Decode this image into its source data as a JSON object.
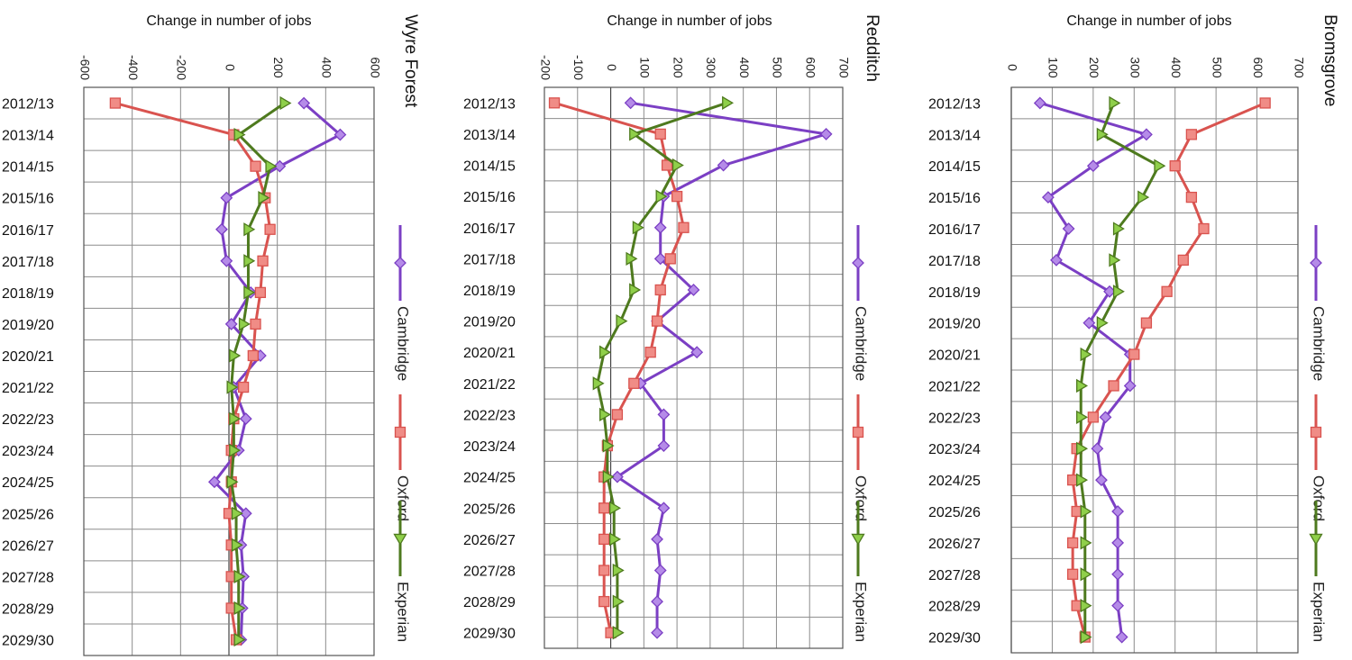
{
  "axis_title": "Change in number of jobs",
  "legend": {
    "cambridge": "Cambridge",
    "oxford": "Oxford",
    "experian": "Experian"
  },
  "colors": {
    "cambridge": "#7b3fc4",
    "cambridge_marker": "#b58be8",
    "oxford": "#d9534f",
    "oxford_marker": "#f08c86",
    "experian": "#4e7a1e",
    "experian_marker": "#8fcf4a"
  },
  "chart_data": [
    {
      "type": "line",
      "orientation": "rotated-90-clockwise",
      "title": "Wyre Forest",
      "xlabel": "",
      "ylabel": "Change in number of jobs",
      "ylim": [
        -600,
        600
      ],
      "yticks": [
        -600,
        -400,
        -200,
        0,
        200,
        400,
        600
      ],
      "categories": [
        "2012/13",
        "2013/14",
        "2014/15",
        "2015/16",
        "2016/17",
        "2017/18",
        "2018/19",
        "2019/20",
        "2020/21",
        "2021/22",
        "2022/23",
        "2023/24",
        "2024/25",
        "2025/26",
        "2026/27",
        "2027/28",
        "2028/29",
        "2029/30"
      ],
      "series": [
        {
          "name": "Cambridge",
          "values": [
            310,
            460,
            210,
            -10,
            -30,
            -10,
            90,
            10,
            130,
            20,
            70,
            40,
            -60,
            70,
            50,
            60,
            55,
            50
          ]
        },
        {
          "name": "Oxford",
          "values": [
            -470,
            20,
            110,
            150,
            170,
            140,
            130,
            110,
            100,
            60,
            20,
            10,
            10,
            0,
            10,
            10,
            10,
            30
          ]
        },
        {
          "name": "Experian",
          "values": [
            230,
            40,
            170,
            140,
            80,
            80,
            80,
            60,
            20,
            10,
            20,
            20,
            10,
            30,
            30,
            40,
            40,
            40
          ]
        }
      ],
      "grid": true,
      "legend": "right"
    },
    {
      "type": "line",
      "orientation": "rotated-90-clockwise",
      "title": "Redditch",
      "xlabel": "",
      "ylabel": "Change in number of jobs",
      "ylim": [
        -200,
        700
      ],
      "yticks": [
        -200,
        -100,
        0,
        100,
        200,
        300,
        400,
        500,
        600,
        700
      ],
      "categories": [
        "2012/13",
        "2013/14",
        "2014/15",
        "2015/16",
        "2016/17",
        "2017/18",
        "2018/19",
        "2019/20",
        "2020/21",
        "2021/22",
        "2022/23",
        "2023/24",
        "2024/25",
        "2025/26",
        "2026/27",
        "2027/28",
        "2028/29",
        "2029/30"
      ],
      "series": [
        {
          "name": "Cambridge",
          "values": [
            60,
            650,
            340,
            160,
            150,
            150,
            250,
            140,
            260,
            90,
            160,
            160,
            20,
            160,
            140,
            150,
            140,
            140
          ]
        },
        {
          "name": "Oxford",
          "values": [
            -170,
            150,
            170,
            200,
            220,
            180,
            150,
            140,
            120,
            70,
            20,
            -10,
            -20,
            -20,
            -20,
            -20,
            -20,
            0
          ]
        },
        {
          "name": "Experian",
          "values": [
            350,
            70,
            200,
            150,
            80,
            60,
            70,
            30,
            -20,
            -40,
            -20,
            -10,
            -10,
            10,
            10,
            20,
            20,
            20
          ]
        }
      ],
      "grid": true,
      "legend": "right"
    },
    {
      "type": "line",
      "orientation": "rotated-90-clockwise",
      "title": "Bromsgrove",
      "xlabel": "",
      "ylabel": "Change in number of jobs",
      "ylim": [
        0,
        700
      ],
      "yticks": [
        0,
        100,
        200,
        300,
        400,
        500,
        600,
        700
      ],
      "categories": [
        "2012/13",
        "2013/14",
        "2014/15",
        "2015/16",
        "2016/17",
        "2017/18",
        "2018/19",
        "2019/20",
        "2020/21",
        "2021/22",
        "2022/23",
        "2023/24",
        "2024/25",
        "2025/26",
        "2026/27",
        "2027/28",
        "2028/29",
        "2029/30"
      ],
      "series": [
        {
          "name": "Cambridge",
          "values": [
            70,
            330,
            200,
            90,
            140,
            110,
            240,
            190,
            290,
            290,
            230,
            210,
            220,
            260,
            260,
            260,
            260,
            270
          ]
        },
        {
          "name": "Oxford",
          "values": [
            620,
            440,
            400,
            440,
            470,
            420,
            380,
            330,
            300,
            250,
            200,
            160,
            150,
            160,
            150,
            150,
            160,
            180
          ]
        },
        {
          "name": "Experian",
          "values": [
            250,
            220,
            360,
            320,
            260,
            250,
            260,
            220,
            180,
            170,
            170,
            170,
            170,
            180,
            180,
            180,
            180,
            180
          ]
        }
      ],
      "grid": true,
      "legend": "right"
    }
  ]
}
